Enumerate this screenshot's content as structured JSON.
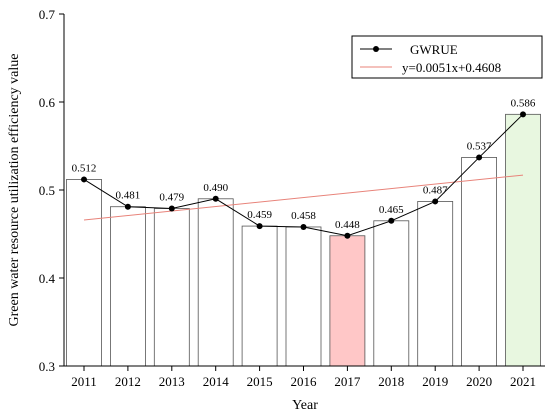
{
  "chart_data": {
    "type": "bar",
    "xlabel": "Year",
    "ylabel": "Green water resource utilization efficiency value",
    "ylim": [
      0.3,
      0.7
    ],
    "yticks": [
      "0.3",
      "0.4",
      "0.5",
      "0.6",
      "0.7"
    ],
    "categories": [
      "2011",
      "2012",
      "2013",
      "2014",
      "2015",
      "2016",
      "2017",
      "2018",
      "2019",
      "2020",
      "2021"
    ],
    "series": [
      {
        "name": "GWRUE",
        "type": "line+bar",
        "values": [
          0.512,
          0.481,
          0.479,
          0.49,
          0.459,
          0.458,
          0.448,
          0.465,
          0.487,
          0.537,
          0.586
        ],
        "labels": [
          "0.512",
          "0.481",
          "0.479",
          "0.490",
          "0.459",
          "0.458",
          "0.448",
          "0.465",
          "0.487",
          "0.537",
          "0.586"
        ]
      },
      {
        "name": "y=0.0051x+0.4608",
        "type": "trendline",
        "slope": 0.0051,
        "intercept": 0.4608
      }
    ],
    "bar_fill_default": "#ffffff",
    "bar_fill_min": "#ffc7c7",
    "bar_fill_max": "#e8f7e0",
    "highlight_min_index": 6,
    "highlight_max_index": 10,
    "line_color": "#000000",
    "trend_color": "#e8837a",
    "legend_position": "top-right",
    "grid": false
  }
}
